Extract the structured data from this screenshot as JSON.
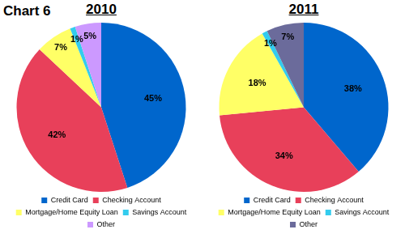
{
  "title": "Chart 6",
  "chart_data": [
    {
      "type": "pie",
      "title": "2010",
      "categories": [
        "Credit Card",
        "Checking Account",
        "Mortgage/Home Equity Loan",
        "Savings Account",
        "Other"
      ],
      "values": [
        45,
        42,
        7,
        1,
        5
      ],
      "value_labels": [
        "45%",
        "42%",
        "7%",
        "1%",
        "5%"
      ],
      "colors": [
        "#0066cc",
        "#e8405a",
        "#ffff66",
        "#33ccee",
        "#cc99ff"
      ],
      "data_labels": true,
      "legend": "bottom"
    },
    {
      "type": "pie",
      "title": "2011",
      "categories": [
        "Credit Card",
        "Checking Account",
        "Mortgage/Home Equity Loan",
        "Savings Account",
        "Other"
      ],
      "values": [
        38,
        34,
        18,
        1,
        7
      ],
      "value_labels": [
        "38%",
        "34%",
        "18%",
        "1%",
        "7%"
      ],
      "colors": [
        "#0066cc",
        "#e8405a",
        "#ffff66",
        "#33ccee",
        "#6b6b9b"
      ],
      "data_labels": true,
      "legend": "bottom"
    }
  ]
}
